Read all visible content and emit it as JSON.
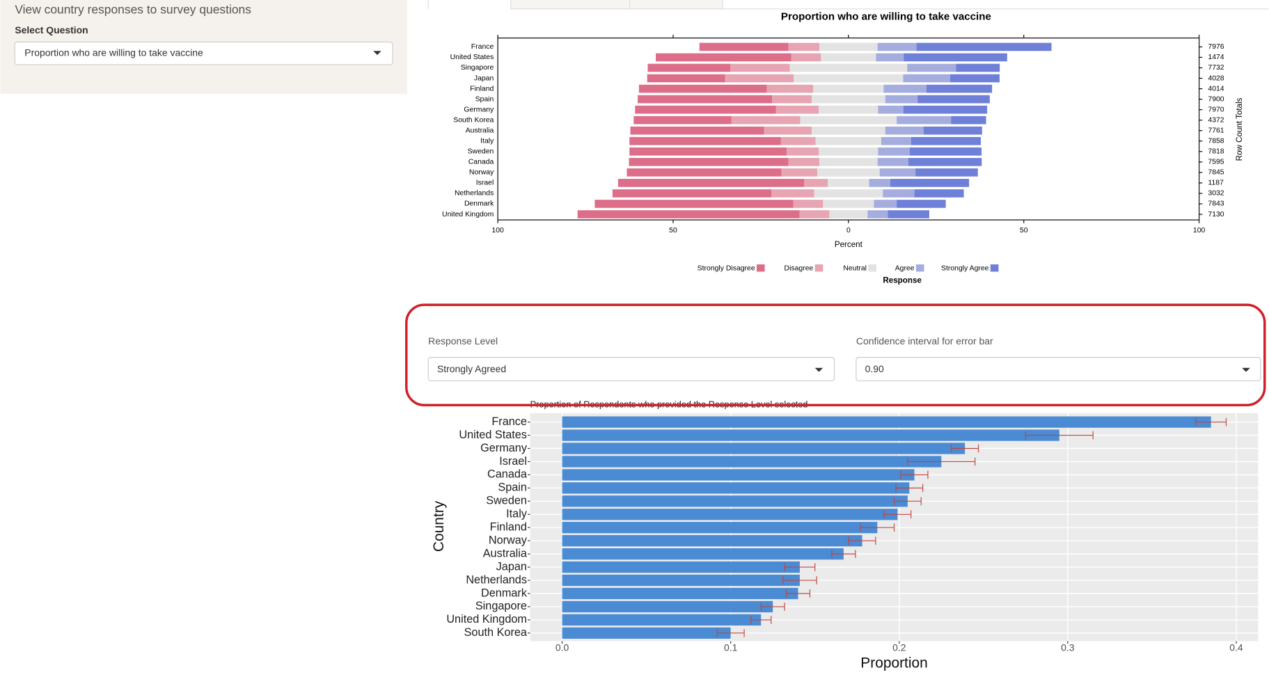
{
  "sidebar": {
    "heading": "View country responses to survey questions",
    "label": "Select Question",
    "selected": "Proportion who are willing to take vaccine"
  },
  "controls": {
    "response_label": "Response Level",
    "response_selected": "Strongly Agreed",
    "ci_label": "Confidence interval for error bar",
    "ci_selected": "0.90"
  },
  "chart_data": [
    {
      "type": "likert",
      "title": "Proportion who are willing to take vaccine",
      "categories": [
        "France",
        "United States",
        "Singapore",
        "Japan",
        "Finland",
        "Spain",
        "Germany",
        "South Korea",
        "Australia",
        "Italy",
        "Sweden",
        "Canada",
        "Norway",
        "Israel",
        "Netherlands",
        "Denmark",
        "United Kingdom"
      ],
      "series": [
        {
          "name": "Strongly Disagree",
          "color": "#dc6e8a",
          "values": [
            25.4,
            38.6,
            23.6,
            22.2,
            36.5,
            38.3,
            40.2,
            27.9,
            38.1,
            43.2,
            44.8,
            45.5,
            44.1,
            53.1,
            45.3,
            56.6,
            63.3
          ]
        },
        {
          "name": "Disagree",
          "color": "#e7a4b2",
          "values": [
            8.8,
            8.5,
            16.9,
            19.6,
            13.2,
            11.3,
            12.2,
            19.6,
            13.6,
            9.9,
            9.2,
            8.8,
            10.2,
            6.7,
            12.2,
            8.5,
            8.5
          ]
        },
        {
          "name": "Neutral",
          "color": "#e3e3e3",
          "values": [
            16.6,
            15.7,
            33.5,
            31.2,
            20.1,
            21.0,
            16.9,
            27.5,
            21.0,
            18.7,
            16.9,
            16.6,
            17.8,
            11.8,
            19.6,
            14.5,
            10.9
          ]
        },
        {
          "name": "Agree",
          "color": "#a5addf",
          "values": [
            11.1,
            7.9,
            13.9,
            13.4,
            12.2,
            9.2,
            7.2,
            15.5,
            10.9,
            8.5,
            9.0,
            8.8,
            10.2,
            6.0,
            9.0,
            6.5,
            5.8
          ]
        },
        {
          "name": "Strongly Agree",
          "color": "#6f80d8",
          "values": [
            38.5,
            29.5,
            12.5,
            14.1,
            18.7,
            20.6,
            23.9,
            10.0,
            16.7,
            19.9,
            20.5,
            20.9,
            17.8,
            22.5,
            14.1,
            14.0,
            11.8
          ]
        }
      ],
      "row_totals": [
        7976,
        1474,
        7732,
        4028,
        4014,
        7900,
        7970,
        4372,
        7761,
        7858,
        7818,
        7595,
        7845,
        1187,
        3032,
        7843,
        7130
      ],
      "row_totals_label": "Row Count Totals",
      "xlabel": "Percent",
      "legend_title": "Response",
      "xlim": [
        -100,
        100
      ],
      "xticks": [
        {
          "value": -100,
          "label": "100"
        },
        {
          "value": -50,
          "label": "50"
        },
        0,
        50,
        100
      ]
    },
    {
      "type": "barh",
      "title": "Proportion of Respondents who provided the Response Level selected",
      "categories": [
        "France",
        "United States",
        "Germany",
        "Israel",
        "Canada",
        "Spain",
        "Sweden",
        "Italy",
        "Finland",
        "Norway",
        "Australia",
        "Japan",
        "Netherlands",
        "Denmark",
        "Singapore",
        "United Kingdom",
        "South Korea"
      ],
      "values": [
        0.385,
        0.295,
        0.239,
        0.225,
        0.209,
        0.206,
        0.205,
        0.199,
        0.187,
        0.178,
        0.167,
        0.141,
        0.141,
        0.14,
        0.125,
        0.118,
        0.1
      ],
      "errors": [
        0.009,
        0.02,
        0.008,
        0.02,
        0.008,
        0.008,
        0.008,
        0.008,
        0.01,
        0.008,
        0.007,
        0.009,
        0.01,
        0.007,
        0.007,
        0.006,
        0.008
      ],
      "color": "#4a8bd4",
      "error_color": "#c0453f",
      "xlabel": "Proportion",
      "ylabel": "Country",
      "xlim": [
        -0.019,
        0.413
      ],
      "xticks": [
        {
          "value": 0,
          "label": "0.0"
        },
        0.1,
        0.2,
        0.3,
        0.4
      ],
      "grid": true
    }
  ]
}
